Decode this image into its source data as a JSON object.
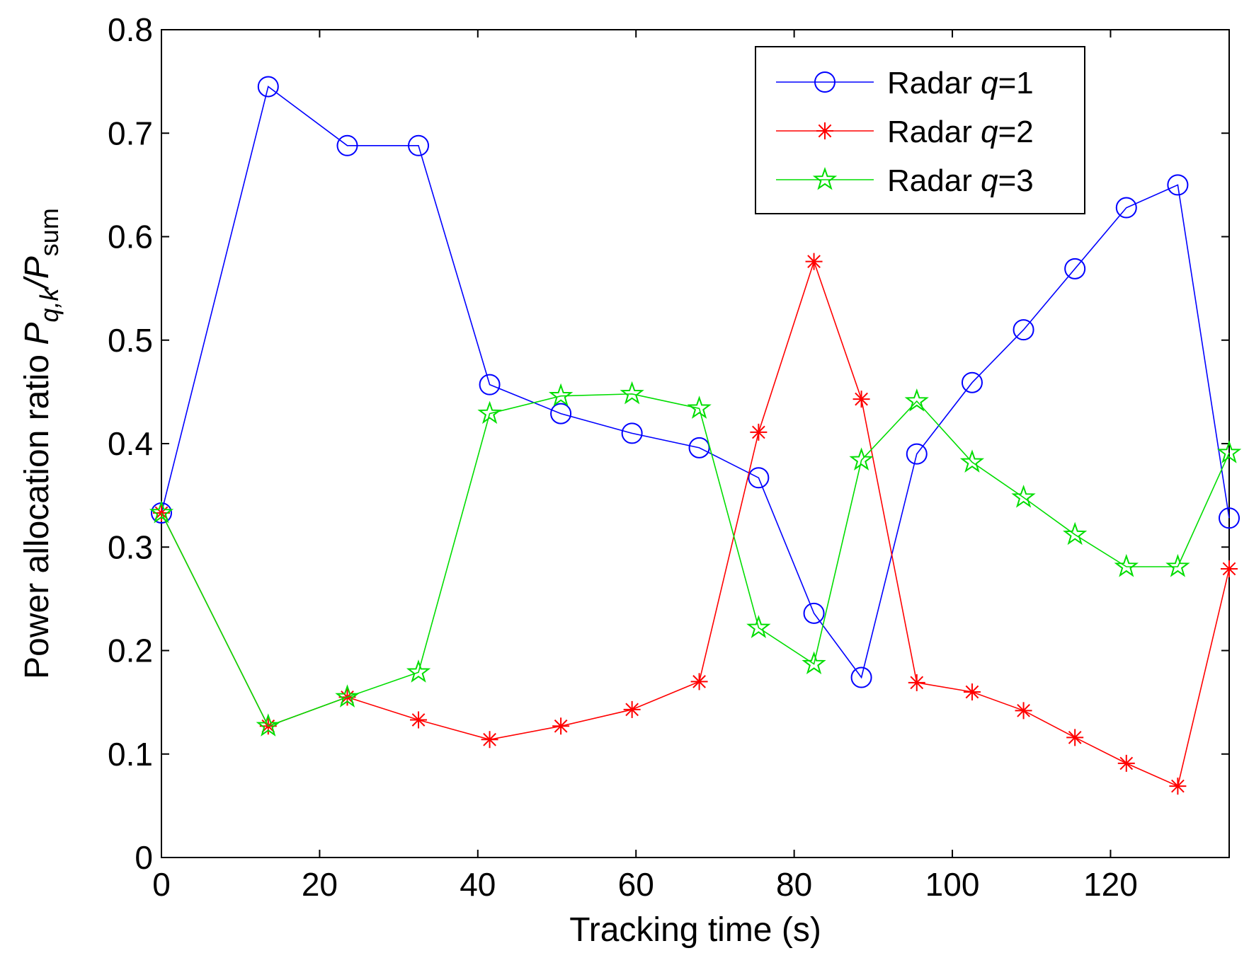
{
  "chart_data": {
    "type": "line",
    "title": "",
    "xlabel": "Tracking time (s)",
    "ylabel": {
      "prefix": "Power allocation ratio ",
      "p1": "P",
      "p1_sub": "q,k",
      "slash": "/",
      "p2": "P",
      "p2_sub": "sum"
    },
    "xlim": [
      0,
      135
    ],
    "ylim": [
      0,
      0.8
    ],
    "xticks": [
      0,
      20,
      40,
      60,
      80,
      100,
      120
    ],
    "xtick_labels": [
      "0",
      "20",
      "40",
      "60",
      "80",
      "100",
      "120"
    ],
    "yticks": [
      0,
      0.1,
      0.2,
      0.3,
      0.4,
      0.5,
      0.6,
      0.7,
      0.8
    ],
    "ytick_labels": [
      "0",
      "0.1",
      "0.2",
      "0.3",
      "0.4",
      "0.5",
      "0.6",
      "0.7",
      "0.8"
    ],
    "grid": false,
    "legend_position": "top-right",
    "x": [
      0,
      13.5,
      23.5,
      32.5,
      41.5,
      50.5,
      59.5,
      68,
      75.5,
      82.5,
      88.5,
      95.5,
      102.5,
      109,
      115.5,
      122,
      128.5,
      135
    ],
    "series": [
      {
        "name": "Radar q=1",
        "legend": {
          "prefix": "Radar ",
          "var": "q",
          "suffix": "=1"
        },
        "color": "#0000ff",
        "marker": "circle",
        "values": [
          0.333,
          0.745,
          0.688,
          0.688,
          0.457,
          0.429,
          0.41,
          0.396,
          0.367,
          0.236,
          0.174,
          0.39,
          0.459,
          0.51,
          0.569,
          0.628,
          0.65,
          0.328
        ]
      },
      {
        "name": "Radar q=2",
        "legend": {
          "prefix": "Radar ",
          "var": "q",
          "suffix": "=2"
        },
        "color": "#ff0000",
        "marker": "asterisk",
        "values": [
          0.333,
          0.127,
          0.155,
          0.133,
          0.114,
          0.127,
          0.143,
          0.17,
          0.411,
          0.576,
          0.443,
          0.169,
          0.16,
          0.142,
          0.116,
          0.091,
          0.069,
          0.279
        ]
      },
      {
        "name": "Radar q=3",
        "legend": {
          "prefix": "Radar ",
          "var": "q",
          "suffix": "=3"
        },
        "color": "#00dd00",
        "marker": "pentagram",
        "values": [
          0.333,
          0.127,
          0.155,
          0.179,
          0.429,
          0.446,
          0.448,
          0.434,
          0.222,
          0.187,
          0.384,
          0.441,
          0.382,
          0.348,
          0.312,
          0.281,
          0.281,
          0.391
        ]
      }
    ]
  }
}
